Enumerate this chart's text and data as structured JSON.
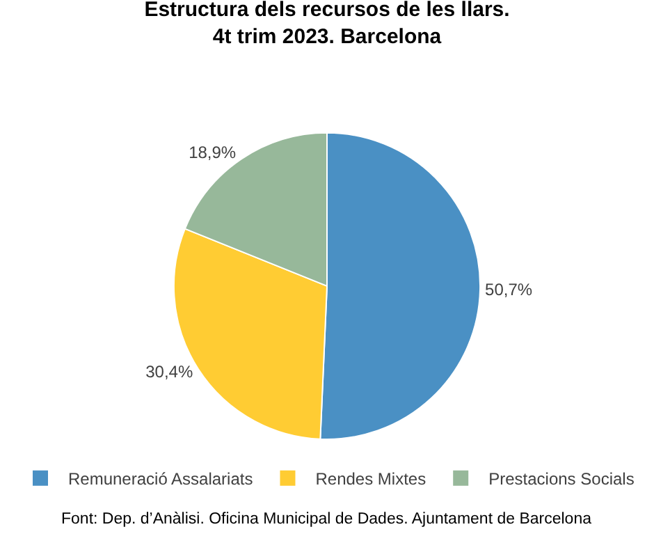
{
  "chart_data": {
    "type": "pie",
    "title": "Estructura dels recursos de les llars.\n4t trim 2023. Barcelona",
    "categories": [
      "Remuneració Assalariats",
      "Rendes Mixtes",
      "Prestacions Socials"
    ],
    "values": [
      50.7,
      30.4,
      18.9
    ],
    "value_labels": [
      "50,7%",
      "30,4%",
      "18,9%"
    ],
    "colors": [
      "#4a90c4",
      "#ffcc33",
      "#97b89a"
    ],
    "legend": "bottom",
    "annotations": [
      "Font: Dep. d’Anàlisi. Oficina Municipal de Dades. Ajuntament de Barcelona"
    ]
  }
}
